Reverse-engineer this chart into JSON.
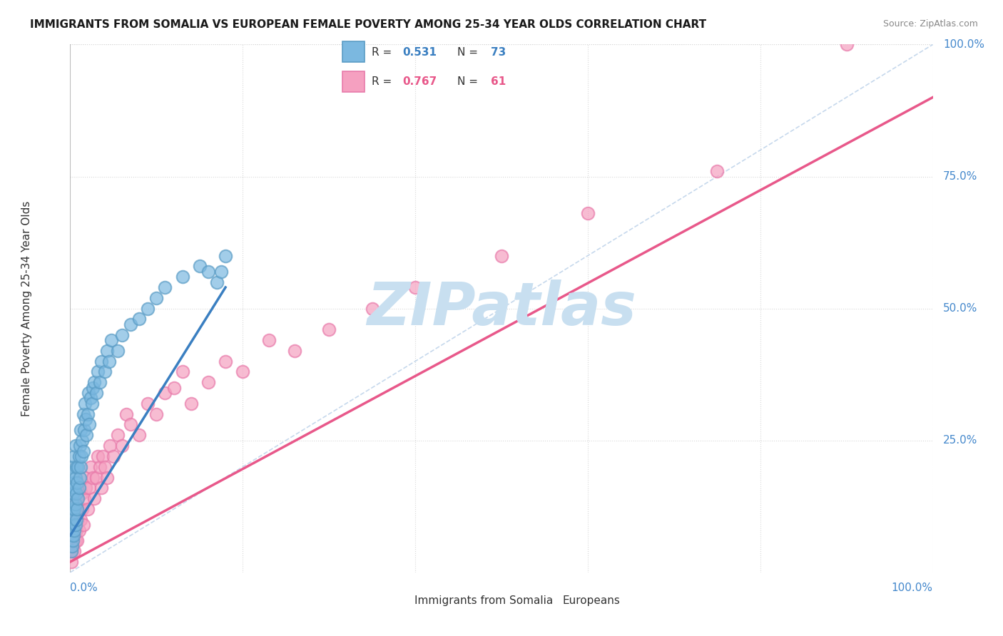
{
  "title": "IMMIGRANTS FROM SOMALIA VS EUROPEAN FEMALE POVERTY AMONG 25-34 YEAR OLDS CORRELATION CHART",
  "source": "Source: ZipAtlas.com",
  "ylabel": "Female Poverty Among 25-34 Year Olds",
  "r_somalia": 0.531,
  "n_somalia": 73,
  "r_european": 0.767,
  "n_european": 61,
  "legend_label1": "Immigrants from Somalia",
  "legend_label2": "Europeans",
  "xlim": [
    0,
    1
  ],
  "ylim": [
    0,
    1
  ],
  "soma_scatter_x": [
    0.001,
    0.001,
    0.001,
    0.002,
    0.002,
    0.002,
    0.002,
    0.003,
    0.003,
    0.003,
    0.003,
    0.003,
    0.004,
    0.004,
    0.004,
    0.004,
    0.005,
    0.005,
    0.005,
    0.005,
    0.006,
    0.006,
    0.006,
    0.006,
    0.007,
    0.007,
    0.007,
    0.008,
    0.008,
    0.009,
    0.009,
    0.01,
    0.01,
    0.011,
    0.011,
    0.012,
    0.012,
    0.013,
    0.014,
    0.015,
    0.015,
    0.016,
    0.017,
    0.018,
    0.019,
    0.02,
    0.021,
    0.022,
    0.024,
    0.025,
    0.026,
    0.028,
    0.03,
    0.032,
    0.034,
    0.036,
    0.04,
    0.043,
    0.045,
    0.048,
    0.055,
    0.06,
    0.07,
    0.08,
    0.09,
    0.1,
    0.11,
    0.13,
    0.15,
    0.16,
    0.17,
    0.175,
    0.18
  ],
  "soma_scatter_y": [
    0.04,
    0.07,
    0.1,
    0.05,
    0.08,
    0.12,
    0.15,
    0.06,
    0.09,
    0.13,
    0.17,
    0.2,
    0.07,
    0.11,
    0.15,
    0.19,
    0.08,
    0.12,
    0.16,
    0.22,
    0.09,
    0.13,
    0.18,
    0.24,
    0.1,
    0.15,
    0.2,
    0.12,
    0.17,
    0.14,
    0.2,
    0.16,
    0.22,
    0.18,
    0.24,
    0.2,
    0.27,
    0.22,
    0.25,
    0.23,
    0.3,
    0.27,
    0.32,
    0.29,
    0.26,
    0.3,
    0.34,
    0.28,
    0.33,
    0.32,
    0.35,
    0.36,
    0.34,
    0.38,
    0.36,
    0.4,
    0.38,
    0.42,
    0.4,
    0.44,
    0.42,
    0.45,
    0.47,
    0.48,
    0.5,
    0.52,
    0.54,
    0.56,
    0.58,
    0.57,
    0.55,
    0.57,
    0.6
  ],
  "euro_scatter_x": [
    0.001,
    0.002,
    0.002,
    0.003,
    0.003,
    0.004,
    0.004,
    0.005,
    0.005,
    0.006,
    0.006,
    0.007,
    0.007,
    0.008,
    0.009,
    0.01,
    0.011,
    0.012,
    0.013,
    0.014,
    0.015,
    0.016,
    0.017,
    0.018,
    0.02,
    0.022,
    0.024,
    0.026,
    0.028,
    0.03,
    0.032,
    0.034,
    0.036,
    0.038,
    0.04,
    0.043,
    0.046,
    0.05,
    0.055,
    0.06,
    0.065,
    0.07,
    0.08,
    0.09,
    0.1,
    0.11,
    0.12,
    0.13,
    0.14,
    0.16,
    0.18,
    0.2,
    0.23,
    0.26,
    0.3,
    0.35,
    0.4,
    0.5,
    0.6,
    0.75,
    0.9
  ],
  "euro_scatter_y": [
    0.02,
    0.04,
    0.08,
    0.05,
    0.1,
    0.06,
    0.12,
    0.04,
    0.08,
    0.06,
    0.1,
    0.08,
    0.14,
    0.06,
    0.1,
    0.08,
    0.12,
    0.1,
    0.15,
    0.12,
    0.09,
    0.14,
    0.18,
    0.16,
    0.12,
    0.16,
    0.2,
    0.18,
    0.14,
    0.18,
    0.22,
    0.2,
    0.16,
    0.22,
    0.2,
    0.18,
    0.24,
    0.22,
    0.26,
    0.24,
    0.3,
    0.28,
    0.26,
    0.32,
    0.3,
    0.34,
    0.35,
    0.38,
    0.32,
    0.36,
    0.4,
    0.38,
    0.44,
    0.42,
    0.46,
    0.5,
    0.54,
    0.6,
    0.68,
    0.76,
    1.0
  ],
  "soma_trendline_x0": 0.0,
  "soma_trendline_y0": 0.07,
  "soma_trendline_x1": 0.18,
  "soma_trendline_y1": 0.54,
  "euro_trendline_x0": 0.0,
  "euro_trendline_y0": 0.02,
  "euro_trendline_x1": 1.0,
  "euro_trendline_y1": 0.9,
  "somalia_scatter_color": "#7bb8e0",
  "somalia_edge_color": "#5a9cc5",
  "european_scatter_color": "#f5a0c0",
  "european_edge_color": "#e87aaa",
  "trendline_somalia_color": "#3a7fc1",
  "trendline_european_color": "#e8588a",
  "diagonal_color": "#b8cfe8",
  "grid_color": "#d8d8d8",
  "title_color": "#1a1a1a",
  "source_color": "#888888",
  "ylabel_color": "#333333",
  "axis_tick_color": "#4488cc",
  "watermark_color": "#c8dff0",
  "watermark_text": "ZIPatlas"
}
